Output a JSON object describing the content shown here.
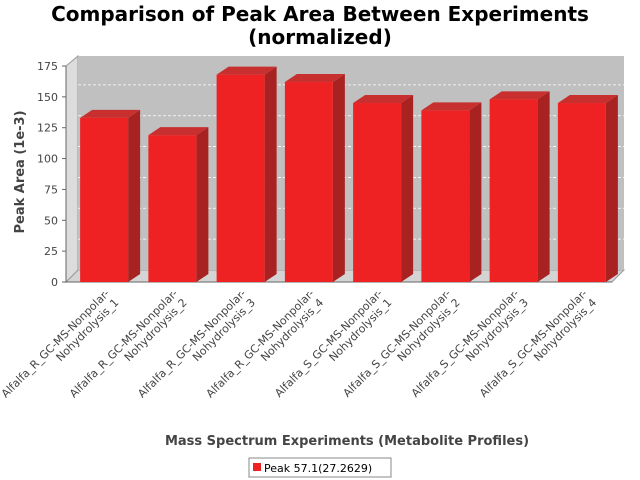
{
  "chart_data": {
    "type": "bar",
    "title": "Comparison of Peak Area Between Experiments",
    "subtitle": "(normalized)",
    "xlabel": "Mass Spectrum Experiments (Metabolite Profiles)",
    "ylabel": "Peak Area (1e-3)",
    "ylim": [
      0,
      175
    ],
    "yticks": [
      "0",
      "25",
      "50",
      "75",
      "100",
      "125",
      "150",
      "175"
    ],
    "grid": true,
    "legend_position": "bottom",
    "categories": [
      [
        "Alfalfa_R_GC-MS-Nonpolar-",
        "Nohydrolysis_1"
      ],
      [
        "Alfalfa_R_GC-MS-Nonpolar-",
        "Nohydrolysis_2"
      ],
      [
        "Alfalfa_R_GC-MS-Nonpolar-",
        "Nohydrolysis_3"
      ],
      [
        "Alfalfa_R_GC-MS-Nonpolar-",
        "Nohydrolysis_4"
      ],
      [
        "Alfalfa_S_GC-MS-Nonpolar-",
        "Nohydrolysis_1"
      ],
      [
        "Alfalfa_S_GC-MS-Nonpolar-",
        "Nohydrolysis_2"
      ],
      [
        "Alfalfa_S_GC-MS-Nonpolar-",
        "Nohydrolysis_3"
      ],
      [
        "Alfalfa_S_GC-MS-Nonpolar-",
        "Nohydrolysis_4"
      ]
    ],
    "series": [
      {
        "name": "Peak 57.1(27.2629)",
        "color": "#ee2222",
        "values": [
          133,
          119,
          168,
          162,
          145,
          139,
          148,
          145
        ]
      }
    ]
  }
}
